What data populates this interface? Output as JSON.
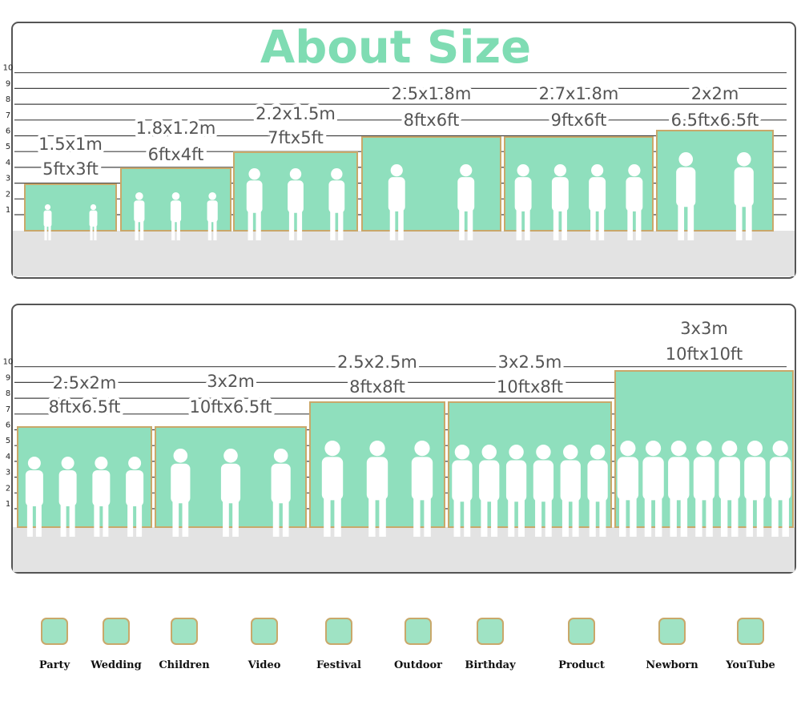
{
  "header": {
    "title": "About Size"
  },
  "scale": [
    1,
    2,
    3,
    4,
    5,
    6,
    7,
    8,
    9,
    10
  ],
  "panels": [
    {
      "items": [
        {
          "meters": "1.5x1m",
          "feet": "5ftx3ft"
        },
        {
          "meters": "1.8x1.2m",
          "feet": "6ftx4ft"
        },
        {
          "meters": "2.2x1.5m",
          "feet": "7ftx5ft"
        },
        {
          "meters": "2.5x1.8m",
          "feet": "8ftx6ft"
        },
        {
          "meters": "2.7x1.8m",
          "feet": "9ftx6ft"
        },
        {
          "meters": "2x2m",
          "feet": "6.5ftx6.5ft"
        }
      ]
    },
    {
      "items": [
        {
          "meters": "2.5x2m",
          "feet": "8ftx6.5ft"
        },
        {
          "meters": "3x2m",
          "feet": "10ftx6.5ft"
        },
        {
          "meters": "2.5x2.5m",
          "feet": "8ftx8ft"
        },
        {
          "meters": "3x2.5m",
          "feet": "10ftx8ft"
        },
        {
          "meters": "3x3m",
          "feet": "10ftx10ft"
        }
      ]
    }
  ],
  "uses": [
    "Party",
    "Wedding",
    "Children",
    "Video",
    "Festival",
    "Outdoor",
    "Birthday",
    "Product",
    "Newborn",
    "YouTube"
  ]
}
